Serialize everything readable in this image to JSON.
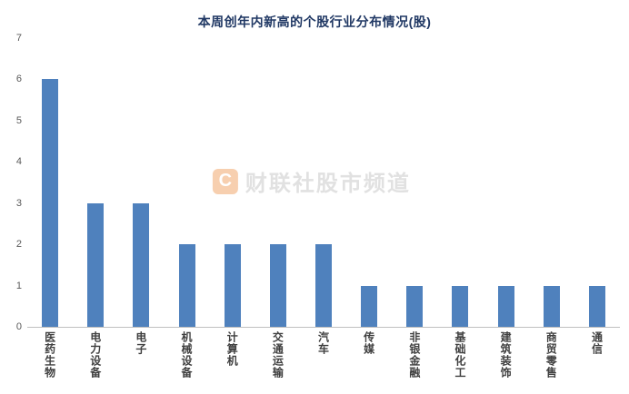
{
  "chart_data": {
    "type": "bar",
    "title": "本周创年内新高的个股行业分布情况(股)",
    "categories": [
      "医药生物",
      "电力设备",
      "电子",
      "机械设备",
      "计算机",
      "交通运输",
      "汽车",
      "传媒",
      "非银金融",
      "基础化工",
      "建筑装饰",
      "商贸零售",
      "通信"
    ],
    "values": [
      6,
      3,
      3,
      2,
      2,
      2,
      2,
      1,
      1,
      1,
      1,
      1,
      1
    ],
    "xlabel": "",
    "ylabel": "",
    "ylim": [
      0,
      7
    ],
    "yticks": [
      7,
      6,
      5,
      4,
      3,
      2,
      1,
      0
    ],
    "bar_color": "#4f81bd",
    "grid": false,
    "legend_position": "none"
  },
  "watermark": {
    "logo": "C",
    "text": "财联社股市频道"
  }
}
